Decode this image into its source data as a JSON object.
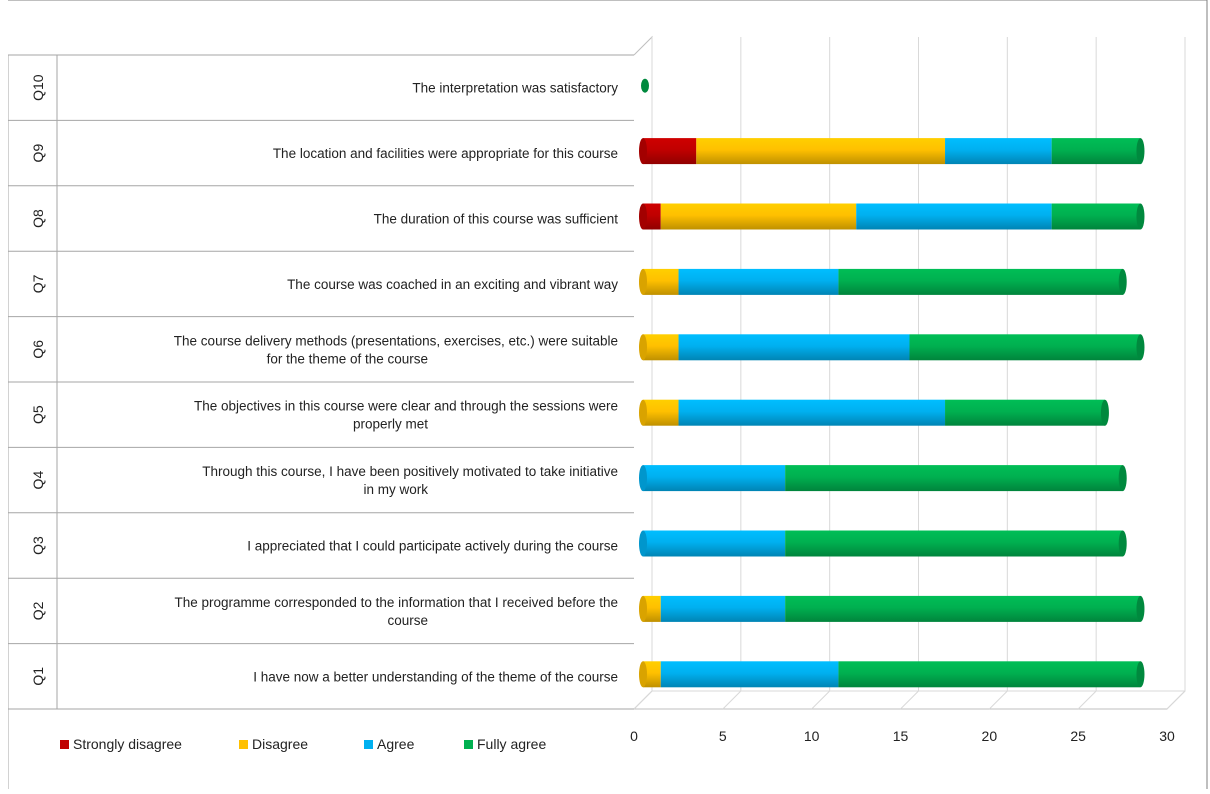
{
  "chart_data": {
    "type": "bar",
    "stacked": true,
    "orientation": "horizontal",
    "style": "3d-cylinder",
    "categories": [
      {
        "code": "Q1",
        "label": "I have now a better understanding of the theme of the course"
      },
      {
        "code": "Q2",
        "label": "The programme corresponded to the information that I received before the course"
      },
      {
        "code": "Q3",
        "label": "I appreciated that I could participate actively during the course"
      },
      {
        "code": "Q4",
        "label": "Through this course, I have been positively motivated to take initiative in my work"
      },
      {
        "code": "Q5",
        "label": "The objectives in this course were clear and through the sessions were properly met"
      },
      {
        "code": "Q6",
        "label": "The course delivery methods (presentations, exercises, etc.) were suitable for the theme of the course"
      },
      {
        "code": "Q7",
        "label": "The course was coached in an exciting and vibrant way"
      },
      {
        "code": "Q8",
        "label": "The duration of this course was sufficient"
      },
      {
        "code": "Q9",
        "label": "The location and facilities were appropriate for this course"
      },
      {
        "code": "Q10",
        "label": "The interpretation was satisfactory"
      }
    ],
    "series": [
      {
        "name": "Strongly disagree",
        "color": "#c00000",
        "values": [
          0,
          0,
          0,
          0,
          0,
          0,
          0,
          1,
          3,
          0
        ]
      },
      {
        "name": "Disagree",
        "color": "#ffc000",
        "values": [
          1,
          1,
          0,
          0,
          2,
          2,
          2,
          11,
          14,
          0
        ]
      },
      {
        "name": "Agree",
        "color": "#00b0f0",
        "values": [
          10,
          7,
          8,
          8,
          15,
          13,
          9,
          11,
          6,
          0
        ]
      },
      {
        "name": "Fully agree",
        "color": "#00b050",
        "values": [
          17,
          20,
          19,
          19,
          9,
          13,
          16,
          5,
          5,
          0
        ]
      }
    ],
    "x_ticks": [
      "0",
      "5",
      "10",
      "15",
      "20",
      "25",
      "30"
    ],
    "xlim": [
      0,
      30
    ],
    "grid": true,
    "legend_position": "bottom-left"
  }
}
